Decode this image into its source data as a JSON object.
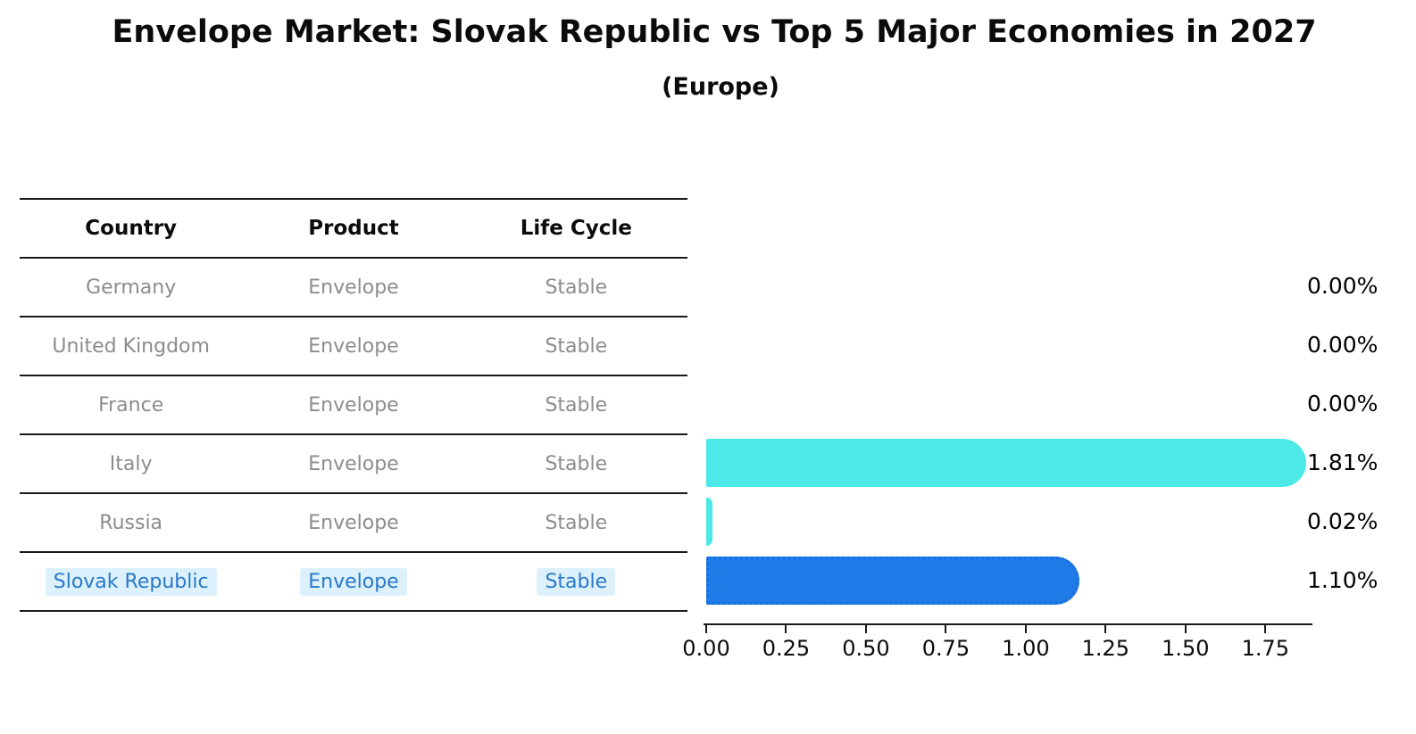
{
  "title": "Envelope Market: Slovak Republic vs Top 5 Major Economies in 2027",
  "subtitle": "(Europe)",
  "table": {
    "columns": [
      "Country",
      "Product",
      "Life Cycle"
    ],
    "rows": [
      {
        "country": "Germany",
        "product": "Envelope",
        "life_cycle": "Stable",
        "highlight": false
      },
      {
        "country": "United Kingdom",
        "product": "Envelope",
        "life_cycle": "Stable",
        "highlight": false
      },
      {
        "country": "France",
        "product": "Envelope",
        "life_cycle": "Stable",
        "highlight": false
      },
      {
        "country": "Italy",
        "product": "Envelope",
        "life_cycle": "Stable",
        "highlight": false
      },
      {
        "country": "Russia",
        "product": "Envelope",
        "life_cycle": "Stable",
        "highlight": false
      },
      {
        "country": "Slovak Republic",
        "product": "Envelope",
        "life_cycle": "Stable",
        "highlight": true
      }
    ]
  },
  "chart_data": {
    "type": "bar",
    "orientation": "horizontal",
    "title": "Envelope Market: Slovak Republic vs Top 5 Major Economies in 2027",
    "subtitle": "(Europe)",
    "categories": [
      "Germany",
      "United Kingdom",
      "France",
      "Italy",
      "Russia",
      "Slovak Republic"
    ],
    "values": [
      0.0,
      0.0,
      0.0,
      1.81,
      0.02,
      1.1
    ],
    "display_values": [
      "0.00%",
      "0.00%",
      "0.00%",
      "1.81%",
      "0.02%",
      "1.10%"
    ],
    "x_ticks": [
      "0.00",
      "0.25",
      "0.50",
      "0.75",
      "1.00",
      "1.25",
      "1.50",
      "1.75"
    ],
    "xlim": [
      0,
      1.9
    ],
    "xlabel": "",
    "ylabel": "",
    "grid": false,
    "legend": "none",
    "bar_colors": [
      "#4DE8E8",
      "#4DE8E8",
      "#4DE8E8",
      "#4DE8E8",
      "#4DE8E8",
      "#1E7BE8"
    ],
    "bar_styles": [
      "solid",
      "solid",
      "solid",
      "solid",
      "solid",
      "dotted"
    ],
    "highlight_category": "Slovak Republic"
  },
  "colors": {
    "bar_cyan": "#4DE8E8",
    "bar_blue": "#1E7BE8",
    "bar_blue_edge": "#176FE0",
    "highlight_text": "#2878C8",
    "highlight_bg": "#DCF1FB",
    "row_text": "#8a8c8e",
    "line": "#1a1a1a"
  }
}
